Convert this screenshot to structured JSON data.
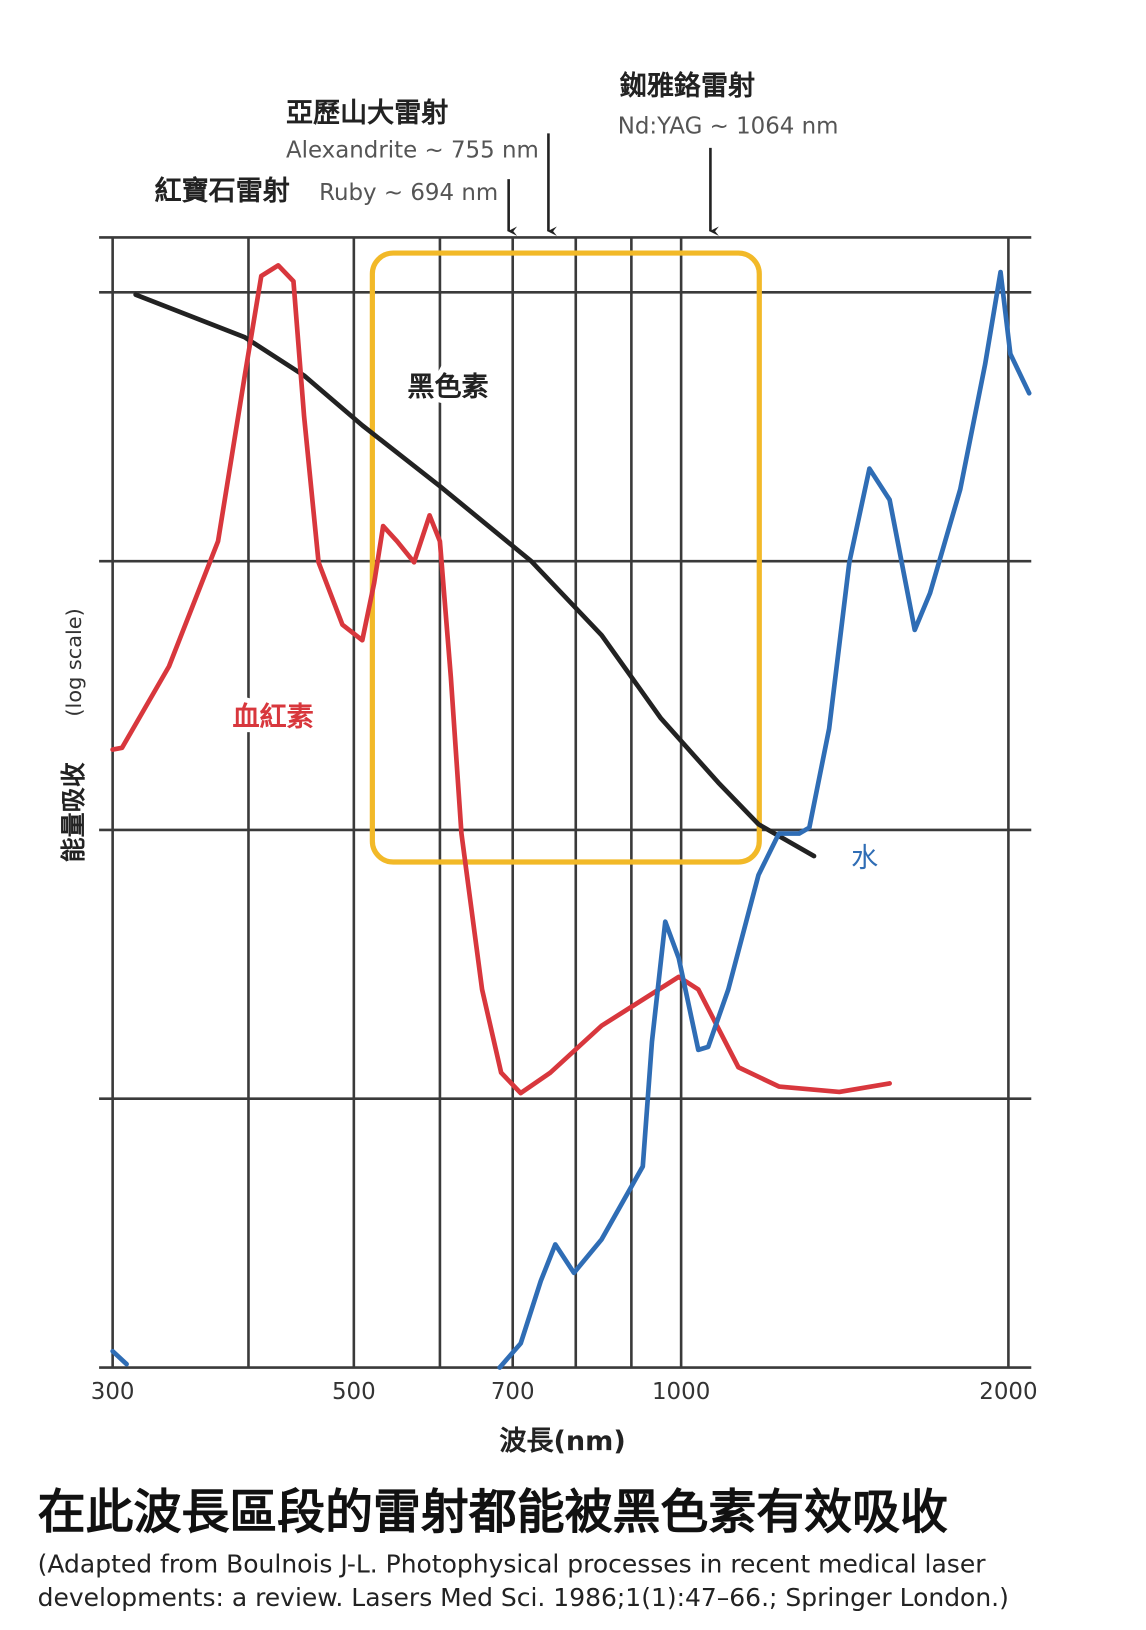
{
  "chart_data": {
    "type": "line",
    "xlabel": "波長(nm)",
    "ylabel": "能量吸收",
    "ylabel_note": "(log scale)",
    "xscale": "log",
    "yscale": "log",
    "xlim": [
      300,
      2090
    ],
    "ylim": [
      1,
      16000
    ],
    "xticks": [
      300,
      500,
      700,
      1000,
      2000
    ],
    "xgrid": [
      300,
      400,
      500,
      600,
      700,
      800,
      900,
      1000,
      2000
    ],
    "ygrid": [
      10,
      100,
      1000,
      10000
    ],
    "series": [
      {
        "name": "黑色素",
        "color": "#222222",
        "x": [
          315,
          397,
          450,
          509,
          600,
          728,
          845,
          958,
          1082,
          1178,
          1325
        ],
        "values": [
          9800,
          6800,
          4900,
          3200,
          1900,
          1000,
          530,
          260,
          150,
          105,
          80
        ]
      },
      {
        "name": "血紅素",
        "color": "#d8373d",
        "x": [
          300,
          306,
          338,
          375,
          397,
          411,
          426,
          440,
          450,
          464,
          488,
          509,
          522,
          532,
          548,
          568,
          587,
          600,
          614,
          628,
          656,
          683,
          712,
          758,
          845,
          995,
          1037,
          1129,
          1230,
          1398,
          1555
        ],
        "values": [
          199,
          202,
          406,
          1185,
          4940,
          11500,
          12600,
          11000,
          3460,
          990,
          580,
          508,
          830,
          1350,
          1185,
          990,
          1480,
          1185,
          371,
          97,
          25.5,
          12.5,
          10.5,
          12.5,
          18.7,
          28.4,
          25.5,
          13.1,
          11.1,
          10.6,
          11.4
        ]
      },
      {
        "name": "水",
        "color": "#2f6db5",
        "x": [
          300,
          309,
          null,
          681,
          712,
          743,
          766,
          797,
          845,
          922,
          940,
          967,
          995,
          1037,
          1059,
          1105,
          1178,
          1230,
          1284,
          1312,
          1368,
          1428,
          1490,
          1555,
          1640,
          1694,
          1806,
          1904,
          1967,
          2008,
          2090
        ],
        "values": [
          1.15,
          1.03,
          null,
          1.0,
          1.23,
          2.1,
          2.87,
          2.25,
          3.0,
          5.6,
          16.3,
          45.6,
          33.4,
          15.2,
          15.6,
          25.5,
          68,
          97,
          97,
          102,
          238,
          990,
          2210,
          1690,
          555,
          760,
          1850,
          5400,
          11900,
          5900,
          4210
        ]
      }
    ],
    "highlight": {
      "x": [
        520,
        1180
      ],
      "y": [
        76,
        14000
      ],
      "color": "#f2b928"
    },
    "annotations": [
      {
        "label_zh": "紅寶石雷射",
        "label_en": "Ruby ~ 694 nm",
        "x": 694
      },
      {
        "label_zh": "亞歷山大雷射",
        "label_en": "Alexandrite ~ 755 nm",
        "x": 755
      },
      {
        "label_zh": "銣雅鉻雷射",
        "label_en": "Nd:YAG ~ 1064 nm",
        "x": 1064
      }
    ],
    "caption": "在此波長區段的雷射都能被黑色素有效吸收",
    "source": [
      "(Adapted from Boulnois J-L. Photophysical processes in recent medical laser",
      "developments: a review. Lasers Med Sci. 1986;1(1):47–66.; Springer London.)"
    ]
  }
}
